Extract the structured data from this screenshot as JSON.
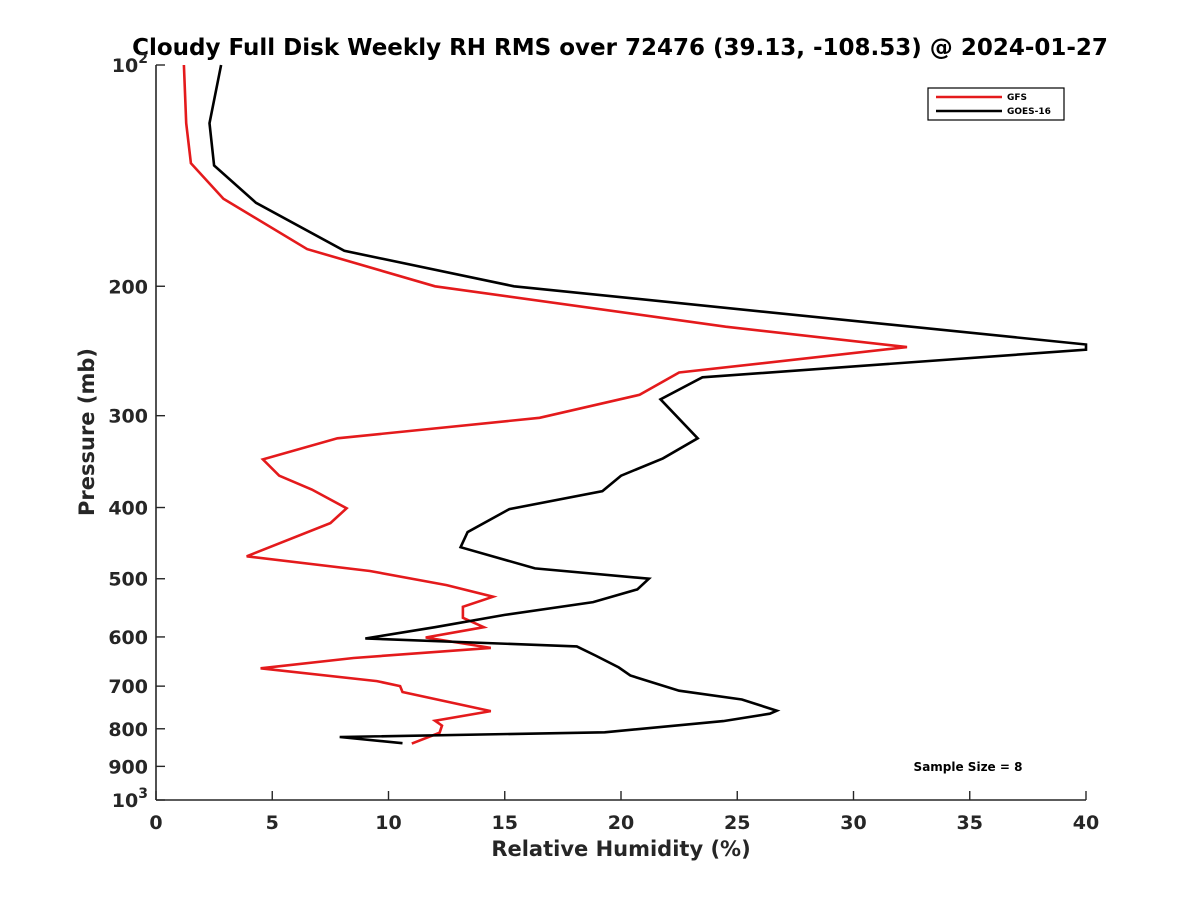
{
  "chart_data": {
    "type": "line",
    "title": "Cloudy Full Disk Weekly RH RMS over 72476 (39.13, -108.53) @ 2024-01-27",
    "xlabel": "Relative Humidity (%)",
    "ylabel": "Pressure (mb)",
    "xlim": [
      0,
      40
    ],
    "ylim": [
      100,
      1000
    ],
    "y_scale": "log",
    "y_reversed": true,
    "grid": false,
    "legend_position": "top-right",
    "x_ticks": [
      0,
      5,
      10,
      15,
      20,
      25,
      30,
      35,
      40
    ],
    "x_tick_labels": [
      "0",
      "5",
      "10",
      "15",
      "20",
      "25",
      "30",
      "35",
      "40"
    ],
    "y_ticks": [
      100,
      200,
      300,
      400,
      500,
      600,
      700,
      800,
      900,
      1000
    ],
    "y_tick_labels": [
      {
        "base": "10",
        "exp": "2"
      },
      {
        "base": "200",
        "exp": ""
      },
      {
        "base": "300",
        "exp": ""
      },
      {
        "base": "400",
        "exp": ""
      },
      {
        "base": "500",
        "exp": ""
      },
      {
        "base": "600",
        "exp": ""
      },
      {
        "base": "700",
        "exp": ""
      },
      {
        "base": "800",
        "exp": ""
      },
      {
        "base": "900",
        "exp": ""
      },
      {
        "base": "10",
        "exp": "3"
      }
    ],
    "annotation": "Sample Size = 8",
    "series": [
      {
        "name": "GFS",
        "color": "#e41a1c",
        "points": [
          [
            1.2,
            100
          ],
          [
            1.3,
            120
          ],
          [
            1.5,
            136
          ],
          [
            2.9,
            152
          ],
          [
            6.5,
            178
          ],
          [
            12.0,
            200
          ],
          [
            24.5,
            227
          ],
          [
            32.3,
            242
          ],
          [
            22.5,
            262
          ],
          [
            20.8,
            281
          ],
          [
            16.5,
            302
          ],
          [
            7.8,
            322
          ],
          [
            4.6,
            344
          ],
          [
            5.3,
            362
          ],
          [
            6.7,
            378
          ],
          [
            8.2,
            401
          ],
          [
            7.5,
            420
          ],
          [
            3.9,
            466
          ],
          [
            9.2,
            488
          ],
          [
            12.5,
            510
          ],
          [
            14.5,
            529
          ],
          [
            13.2,
            546
          ],
          [
            13.2,
            565
          ],
          [
            14.1,
            582
          ],
          [
            11.6,
            601
          ],
          [
            14.4,
            621
          ],
          [
            8.5,
            641
          ],
          [
            4.5,
            662
          ],
          [
            9.5,
            689
          ],
          [
            10.5,
            700
          ],
          [
            10.6,
            713
          ],
          [
            14.4,
            757
          ],
          [
            12.0,
            780
          ],
          [
            12.3,
            792
          ],
          [
            12.2,
            810
          ],
          [
            11.0,
            838
          ]
        ]
      },
      {
        "name": "GOES-16",
        "color": "#000000",
        "points": [
          [
            2.8,
            100
          ],
          [
            2.3,
            120
          ],
          [
            2.5,
            137
          ],
          [
            4.3,
            154
          ],
          [
            8.1,
            179
          ],
          [
            15.4,
            200
          ],
          [
            40.0,
            240
          ],
          [
            40.0,
            244
          ],
          [
            23.5,
            266
          ],
          [
            21.7,
            285
          ],
          [
            23.3,
            322
          ],
          [
            21.8,
            343
          ],
          [
            20.0,
            362
          ],
          [
            19.2,
            380
          ],
          [
            15.2,
            402
          ],
          [
            13.4,
            432
          ],
          [
            13.1,
            453
          ],
          [
            16.3,
            484
          ],
          [
            21.2,
            500
          ],
          [
            20.7,
            517
          ],
          [
            18.8,
            538
          ],
          [
            15.0,
            560
          ],
          [
            12.0,
            582
          ],
          [
            9.0,
            603
          ],
          [
            18.1,
            618
          ],
          [
            18.9,
            636
          ],
          [
            19.9,
            660
          ],
          [
            20.4,
            677
          ],
          [
            22.5,
            710
          ],
          [
            25.2,
            730
          ],
          [
            26.7,
            756
          ],
          [
            26.4,
            763
          ],
          [
            24.4,
            781
          ],
          [
            19.3,
            809
          ],
          [
            7.9,
            821
          ],
          [
            10.6,
            837
          ]
        ]
      }
    ]
  }
}
